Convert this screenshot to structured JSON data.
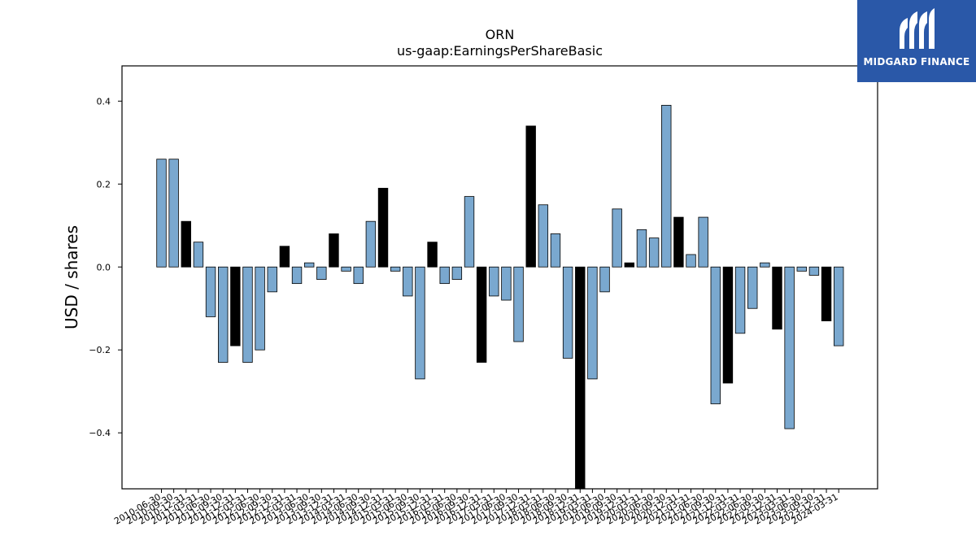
{
  "chart_data": {
    "type": "bar",
    "title": "ORN",
    "subtitle": "us-gaap:EarningsPerShareBasic",
    "xlabel": "",
    "ylabel": "USD / shares",
    "ylim": [
      -0.535,
      0.485
    ],
    "yticks": [
      -0.4,
      -0.2,
      0.0,
      0.2,
      0.4
    ],
    "ytick_labels": [
      "−0.4",
      "−0.2",
      "0.0",
      "0.2",
      "0.4"
    ],
    "grid": false,
    "legend": "none",
    "colors": {
      "regular": "#7aa8cf",
      "highlighted": "#000000",
      "edge": "#000000"
    },
    "categories": [
      "2010-06-30",
      "2010-09-30",
      "2010-12-31",
      "2011-03-31",
      "2011-06-30",
      "2011-09-30",
      "2011-12-31",
      "2012-03-31",
      "2012-06-30",
      "2012-09-30",
      "2012-12-31",
      "2013-03-31",
      "2013-06-30",
      "2013-09-30",
      "2013-12-31",
      "2014-03-31",
      "2014-06-30",
      "2014-09-30",
      "2014-12-31",
      "2015-03-31",
      "2015-06-30",
      "2015-09-30",
      "2015-12-31",
      "2016-03-31",
      "2016-06-30",
      "2016-09-30",
      "2016-12-31",
      "2017-03-31",
      "2017-06-30",
      "2017-09-30",
      "2017-12-31",
      "2018-03-31",
      "2018-06-30",
      "2018-09-30",
      "2018-12-31",
      "2019-03-31",
      "2019-06-30",
      "2019-09-30",
      "2019-12-31",
      "2020-03-31",
      "2020-06-30",
      "2020-09-30",
      "2020-12-31",
      "2021-03-31",
      "2021-06-30",
      "2021-09-30",
      "2021-12-31",
      "2022-03-31",
      "2022-06-30",
      "2022-09-30",
      "2022-12-31",
      "2023-03-31",
      "2023-06-30",
      "2023-09-30",
      "2023-12-31",
      "2024-03-31"
    ],
    "values": [
      0.26,
      0.26,
      0.11,
      0.06,
      -0.12,
      -0.23,
      -0.19,
      -0.23,
      -0.2,
      -0.06,
      0.05,
      -0.04,
      0.01,
      -0.03,
      0.08,
      -0.01,
      -0.04,
      0.11,
      0.19,
      -0.01,
      -0.07,
      -0.27,
      0.06,
      -0.04,
      -0.03,
      0.17,
      -0.23,
      -0.07,
      -0.08,
      -0.18,
      0.34,
      0.15,
      0.08,
      -0.22,
      -0.6,
      -0.27,
      -0.06,
      0.14,
      0.01,
      0.09,
      0.07,
      0.39,
      0.12,
      0.03,
      0.12,
      -0.33,
      -0.28,
      -0.16,
      -0.1,
      0.01,
      -0.15,
      -0.39,
      -0.01,
      -0.02,
      -0.13,
      -0.19
    ],
    "highlighted": [
      2,
      6,
      10,
      14,
      18,
      22,
      26,
      30,
      34,
      38,
      42,
      46,
      50,
      54
    ]
  },
  "logo": {
    "text": "MIDGARD FINANCE"
  }
}
